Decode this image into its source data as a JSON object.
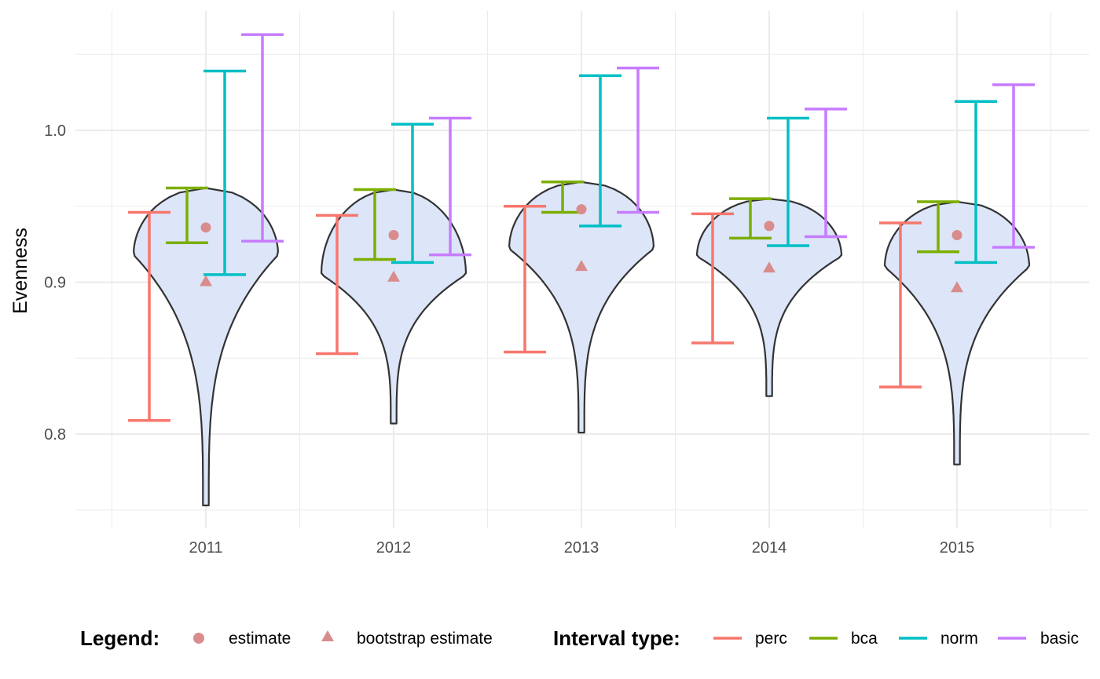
{
  "chart_data": {
    "type": "violin",
    "ylabel": "Evenness",
    "xlabel": "",
    "ylim": [
      0.74,
      1.0625
    ],
    "y_ticks": [
      0.8,
      0.9,
      1.0
    ],
    "y_tick_labels": [
      "0.8",
      "0.9",
      "1.0"
    ],
    "categories": [
      "2011",
      "2012",
      "2013",
      "2014",
      "2015"
    ],
    "grid": true,
    "legend_position": "bottom",
    "colors": {
      "perc": "#F8766D",
      "bca": "#7CAE00",
      "norm": "#00BFC4",
      "basic": "#C77CFF",
      "point": "#D98C8C",
      "violin_fill": "#DCE6F8",
      "violin_line": "#333333",
      "grid": "#EBEBEB"
    },
    "estimate": [
      0.936,
      0.931,
      0.948,
      0.937,
      0.931
    ],
    "bootstrap_estimate": [
      0.9,
      0.903,
      0.91,
      0.909,
      0.896
    ],
    "intervals": [
      {
        "name": "perc",
        "lower": [
          0.809,
          0.853,
          0.854,
          0.86,
          0.831
        ],
        "upper": [
          0.946,
          0.944,
          0.95,
          0.945,
          0.939
        ]
      },
      {
        "name": "bca",
        "lower": [
          0.926,
          0.915,
          0.946,
          0.929,
          0.92
        ],
        "upper": [
          0.962,
          0.961,
          0.966,
          0.955,
          0.953
        ]
      },
      {
        "name": "norm",
        "lower": [
          0.905,
          0.913,
          0.937,
          0.924,
          0.913
        ],
        "upper": [
          1.039,
          1.004,
          1.036,
          1.008,
          1.019
        ]
      },
      {
        "name": "basic",
        "lower": [
          0.927,
          0.918,
          0.946,
          0.93,
          0.923
        ],
        "upper": [
          1.063,
          1.008,
          1.041,
          1.014,
          1.03
        ]
      }
    ],
    "violins": [
      {
        "min": 0.753,
        "max": 0.962,
        "peak": 0.918
      },
      {
        "min": 0.807,
        "max": 0.961,
        "peak": 0.905
      },
      {
        "min": 0.801,
        "max": 0.966,
        "peak": 0.922
      },
      {
        "min": 0.825,
        "max": 0.955,
        "peak": 0.917
      },
      {
        "min": 0.78,
        "max": 0.953,
        "peak": 0.91
      }
    ]
  },
  "legend": {
    "title": "Legend:",
    "items": [
      {
        "label": "estimate",
        "shape": "circle"
      },
      {
        "label": "bootstrap estimate",
        "shape": "triangle"
      }
    ]
  },
  "interval_legend": {
    "title": "Interval type:",
    "items": [
      {
        "label": "perc",
        "color_key": "perc"
      },
      {
        "label": "bca",
        "color_key": "bca"
      },
      {
        "label": "norm",
        "color_key": "norm"
      },
      {
        "label": "basic",
        "color_key": "basic"
      }
    ]
  }
}
